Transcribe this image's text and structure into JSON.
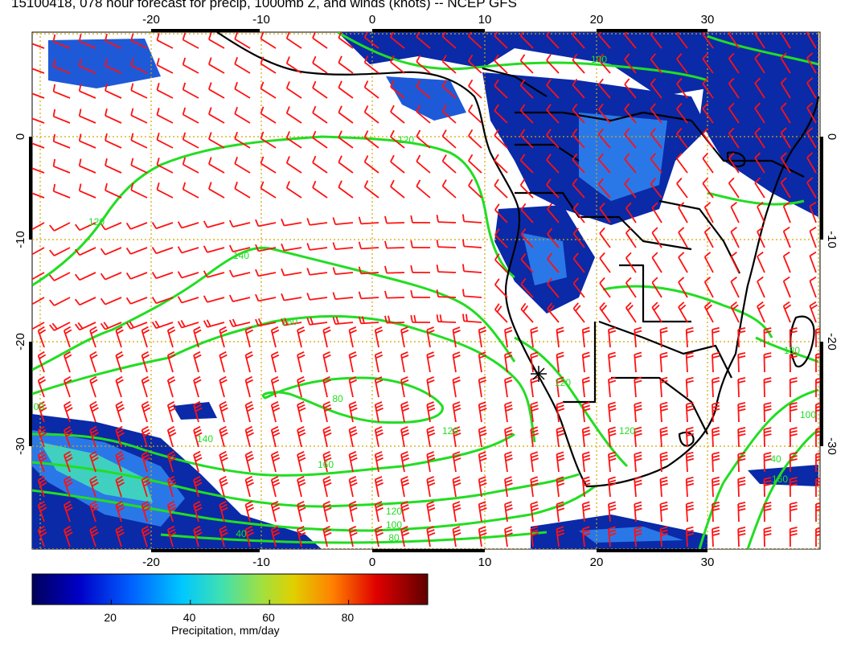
{
  "title": "15100418, 078 hour forecast for precip, 1000mb Z, and winds (knots) -- NCEP GFS",
  "map": {
    "lon_ticks": [
      "-20",
      "-10",
      "0",
      "10",
      "20",
      "30"
    ],
    "lat_ticks": [
      "0",
      "-10",
      "-20",
      "-30"
    ],
    "contour_labels": [
      "120",
      "120",
      "140",
      "160",
      "80",
      "100",
      "140",
      "160",
      "120",
      "100",
      "80",
      "40",
      "120",
      "180",
      "120",
      "100",
      "40",
      "120",
      "100",
      "160"
    ],
    "colors": {
      "contour": "#22dd22",
      "barb": "#ff1111",
      "grid": "#d4a800",
      "coast": "#000000",
      "precip_low": "#0a2aa8",
      "precip_mid": "#2a78e8",
      "precip_high": "#40d0c0"
    }
  },
  "colorbar": {
    "label": "Precipitation, mm/day",
    "ticks": [
      "20",
      "40",
      "60",
      "80"
    ],
    "min": 0,
    "max": 100
  }
}
